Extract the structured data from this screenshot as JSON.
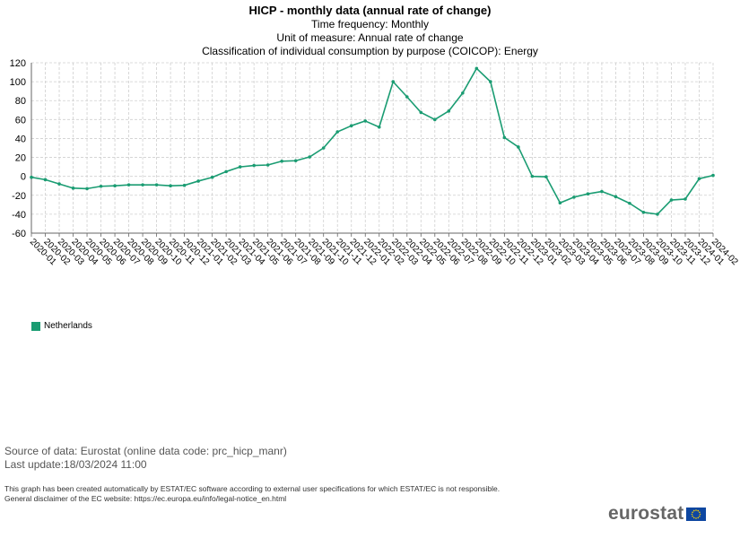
{
  "header": {
    "title": "HICP - monthly data (annual rate of change)",
    "subtitle_1": "Time frequency: Monthly",
    "subtitle_2": "Unit of measure: Annual rate of change",
    "subtitle_3": "Classification of individual consumption by purpose (COICOP): Energy"
  },
  "chart_data": {
    "type": "line",
    "categories": [
      "2020-01",
      "2020-02",
      "2020-03",
      "2020-04",
      "2020-05",
      "2020-06",
      "2020-07",
      "2020-08",
      "2020-09",
      "2020-10",
      "2020-11",
      "2020-12",
      "2021-01",
      "2021-02",
      "2021-03",
      "2021-04",
      "2021-05",
      "2021-06",
      "2021-07",
      "2021-08",
      "2021-09",
      "2021-10",
      "2021-11",
      "2021-12",
      "2022-01",
      "2022-02",
      "2022-03",
      "2022-04",
      "2022-05",
      "2022-06",
      "2022-07",
      "2022-08",
      "2022-09",
      "2022-10",
      "2022-11",
      "2022-12",
      "2023-01",
      "2023-02",
      "2023-03",
      "2023-04",
      "2023-05",
      "2023-06",
      "2023-07",
      "2023-08",
      "2023-09",
      "2023-10",
      "2023-11",
      "2023-12",
      "2024-01",
      "2024-02"
    ],
    "series": [
      {
        "name": "Netherlands",
        "color": "#1a9c72",
        "values": [
          -1,
          -3.5,
          -8,
          -12.5,
          -13,
          -10.5,
          -10,
          -9,
          -9,
          -9,
          -10,
          -9.5,
          -5,
          -1,
          5,
          10,
          11.5,
          12,
          16,
          16.5,
          20.5,
          30,
          47,
          53.5,
          58.5,
          52,
          100,
          84,
          67.5,
          60,
          69,
          88,
          114,
          100,
          41,
          31,
          0,
          -0.5,
          -28,
          -22,
          -18.5,
          -16,
          -21.5,
          -28.5,
          -38,
          -40,
          -25,
          -24,
          -2.5,
          1
        ]
      }
    ],
    "yticks": [
      120,
      100,
      80,
      60,
      40,
      20,
      0,
      -20,
      -40,
      -60
    ],
    "ylim": [
      -60,
      120
    ],
    "grid": true,
    "legend_position": "bottom-left"
  },
  "legend": {
    "label": "Netherlands",
    "color": "#1a9c72"
  },
  "footer": {
    "source": "Source of data: Eurostat (online data code: prc_hicp_manr)",
    "last_update": "Last update:18/03/2024 11:00",
    "disclaimer_1": "This graph has been created automatically by ESTAT/EC software according to external user specifications for which ESTAT/EC is not responsible.",
    "disclaimer_2": "General disclaimer of the EC website: https://ec.europa.eu/info/legal-notice_en.html",
    "logo_text": "eurostat"
  }
}
